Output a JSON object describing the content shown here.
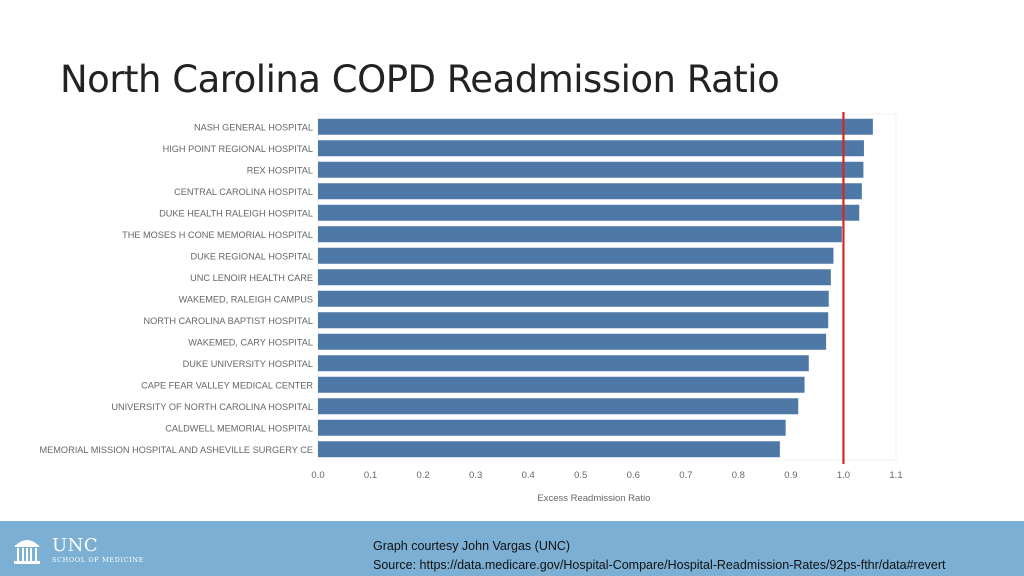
{
  "slide": {
    "title": "North Carolina COPD Readmission Ratio"
  },
  "chart_data": {
    "type": "bar",
    "orientation": "horizontal",
    "categories": [
      "NASH GENERAL HOSPITAL",
      "HIGH POINT REGIONAL HOSPITAL",
      "REX HOSPITAL",
      "CENTRAL CAROLINA HOSPITAL",
      "DUKE HEALTH RALEIGH HOSPITAL",
      "THE MOSES H CONE MEMORIAL HOSPITAL",
      "DUKE REGIONAL HOSPITAL",
      "UNC LENOIR HEALTH CARE",
      "WAKEMED, RALEIGH CAMPUS",
      "NORTH CAROLINA BAPTIST HOSPITAL",
      "WAKEMED, CARY HOSPITAL",
      "DUKE UNIVERSITY HOSPITAL",
      "CAPE FEAR VALLEY MEDICAL CENTER",
      "UNIVERSITY OF NORTH CAROLINA HOSPITAL",
      "CALDWELL MEMORIAL HOSPITAL",
      "MEMORIAL MISSION HOSPITAL AND ASHEVILLE SURGERY CE"
    ],
    "values": [
      1.056,
      1.039,
      1.038,
      1.035,
      1.03,
      0.997,
      0.981,
      0.976,
      0.972,
      0.971,
      0.967,
      0.934,
      0.926,
      0.914,
      0.89,
      0.879
    ],
    "xlabel": "Excess Readmission Ratio",
    "xticks": [
      "0.0",
      "0.1",
      "0.2",
      "0.3",
      "0.4",
      "0.5",
      "0.6",
      "0.7",
      "0.8",
      "0.9",
      "1.0",
      "1.1"
    ],
    "xlim": [
      0,
      1.1
    ],
    "reference_line": 1.0,
    "bar_color": "#4e79a7",
    "reference_color": "#d62728",
    "grid": false
  },
  "footer": {
    "logo_text": "UNC",
    "logo_sub": "SCHOOL OF MEDICINE",
    "credit_line": "Graph courtesy John Vargas (UNC)",
    "source_line": "Source: https://data.medicare.gov/Hospital-Compare/Hospital-Readmission-Rates/92ps-fthr/data#revert",
    "background": "#7bafd4"
  }
}
